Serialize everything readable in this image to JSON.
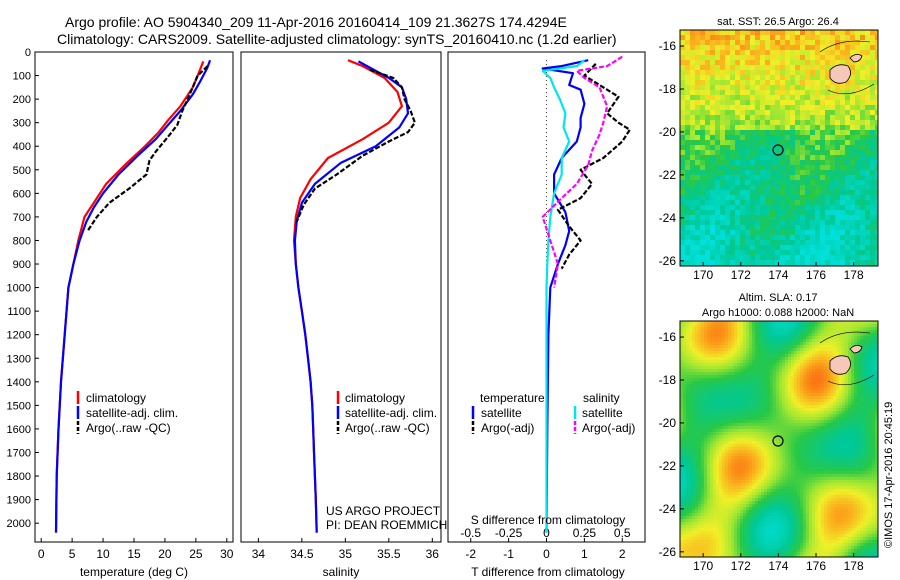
{
  "title": {
    "line1": "Argo profile: AO 5904340_209 11-Apr-2016 20160414_109 21.3627S 174.4294E",
    "line2": "Climatology: CARS2009. Satellite-adjusted climatology: synTS_20160410.nc (1.2d earlier)"
  },
  "colors": {
    "climatology": "#ff0000",
    "satellite": "#0000ff",
    "argo": "#000000",
    "sal_satellite": "#00e5ee",
    "sal_argo": "#ff00ff"
  },
  "depth_axis": {
    "ticks": [
      0,
      100,
      200,
      300,
      400,
      500,
      600,
      700,
      800,
      900,
      1000,
      1100,
      1200,
      1300,
      1400,
      1500,
      1600,
      1700,
      1800,
      1900,
      2000
    ],
    "ylim": [
      0,
      2080
    ]
  },
  "legend_tsal": [
    "climatology",
    "satellite-adj. clim.",
    "Argo(..raw -QC)"
  ],
  "legend_diff": {
    "temp_header": "temperature",
    "sal_header": "salinity",
    "satellite": "satellite",
    "argo": "Argo(-adj)"
  },
  "credit": {
    "project": "US ARGO PROJECT",
    "pi": "PI: DEAN ROEMMICH"
  },
  "chart_data": [
    {
      "type": "line",
      "xlabel": "temperature (deg C)",
      "xlim": [
        -1,
        31
      ],
      "xticks": [
        0,
        5,
        10,
        15,
        20,
        25,
        30
      ],
      "series": [
        {
          "name": "climatology",
          "points": [
            [
              26.2,
              40
            ],
            [
              25.6,
              80
            ],
            [
              24.5,
              150
            ],
            [
              22.5,
              230
            ],
            [
              20.5,
              290
            ],
            [
              19,
              340
            ],
            [
              16.8,
              400
            ],
            [
              13.5,
              480
            ],
            [
              10.5,
              560
            ],
            [
              8.5,
              640
            ],
            [
              7,
              700
            ],
            [
              6,
              800
            ],
            [
              5.2,
              900
            ],
            [
              4.4,
              1000
            ],
            [
              3.8,
              1200
            ],
            [
              3.2,
              1400
            ],
            [
              2.8,
              1600
            ],
            [
              2.5,
              1800
            ],
            [
              2.4,
              2040
            ]
          ]
        },
        {
          "name": "satellite-adj. clim.",
          "points": [
            [
              27.3,
              35
            ],
            [
              26.8,
              70
            ],
            [
              25.8,
              120
            ],
            [
              24.5,
              180
            ],
            [
              22.5,
              250
            ],
            [
              20.5,
              310
            ],
            [
              18.5,
              370
            ],
            [
              15.6,
              440
            ],
            [
              12.5,
              520
            ],
            [
              10,
              600
            ],
            [
              8.5,
              660
            ],
            [
              7.3,
              720
            ],
            [
              6.2,
              800
            ],
            [
              5.2,
              900
            ],
            [
              4.4,
              1000
            ],
            [
              3.8,
              1200
            ],
            [
              3.2,
              1400
            ],
            [
              2.8,
              1600
            ],
            [
              2.5,
              1800
            ],
            [
              2.4,
              2040
            ]
          ]
        },
        {
          "name": "Argo(..raw -QC)",
          "points": [
            [
              26.9,
              60
            ],
            [
              25.3,
              100
            ],
            [
              24,
              180
            ],
            [
              22.8,
              250
            ],
            [
              22,
              310
            ],
            [
              20.5,
              360
            ],
            [
              18.6,
              420
            ],
            [
              17.5,
              460
            ],
            [
              17,
              520
            ],
            [
              14.2,
              580
            ],
            [
              11,
              640
            ],
            [
              9,
              700
            ],
            [
              7.5,
              760
            ]
          ]
        }
      ]
    },
    {
      "type": "line",
      "xlabel": "salinity",
      "xlim": [
        33.8,
        36.1
      ],
      "xticks": [
        34,
        34.5,
        35,
        35.5,
        36
      ],
      "series": [
        {
          "name": "climatology",
          "points": [
            [
              35.03,
              35
            ],
            [
              35.2,
              60
            ],
            [
              35.45,
              110
            ],
            [
              35.6,
              170
            ],
            [
              35.65,
              230
            ],
            [
              35.5,
              300
            ],
            [
              35.2,
              370
            ],
            [
              34.8,
              450
            ],
            [
              34.6,
              540
            ],
            [
              34.48,
              620
            ],
            [
              34.43,
              700
            ],
            [
              34.41,
              800
            ],
            [
              34.43,
              900
            ],
            [
              34.46,
              1000
            ],
            [
              34.5,
              1100
            ],
            [
              34.54,
              1200
            ],
            [
              34.57,
              1300
            ],
            [
              34.6,
              1400
            ],
            [
              34.62,
              1500
            ],
            [
              34.63,
              1600
            ],
            [
              34.64,
              1700
            ],
            [
              34.65,
              1800
            ],
            [
              34.66,
              1900
            ],
            [
              34.67,
              2040
            ]
          ]
        },
        {
          "name": "satellite-adj. clim.",
          "points": [
            [
              35.15,
              40
            ],
            [
              35.3,
              70
            ],
            [
              35.5,
              110
            ],
            [
              35.65,
              150
            ],
            [
              35.7,
              200
            ],
            [
              35.72,
              260
            ],
            [
              35.62,
              320
            ],
            [
              35.35,
              400
            ],
            [
              34.95,
              470
            ],
            [
              34.65,
              560
            ],
            [
              34.5,
              640
            ],
            [
              34.44,
              720
            ],
            [
              34.42,
              800
            ],
            [
              34.43,
              900
            ],
            [
              34.46,
              1000
            ],
            [
              34.5,
              1100
            ],
            [
              34.54,
              1200
            ],
            [
              34.57,
              1300
            ],
            [
              34.6,
              1400
            ],
            [
              34.62,
              1500
            ],
            [
              34.63,
              1600
            ],
            [
              34.64,
              1700
            ],
            [
              34.65,
              1800
            ],
            [
              34.66,
              1900
            ],
            [
              34.67,
              2040
            ]
          ]
        },
        {
          "name": "Argo(..raw -QC)",
          "points": [
            [
              35.28,
              75
            ],
            [
              35.55,
              110
            ],
            [
              35.65,
              150
            ],
            [
              35.68,
              200
            ],
            [
              35.75,
              250
            ],
            [
              35.8,
              300
            ],
            [
              35.72,
              340
            ],
            [
              35.5,
              380
            ],
            [
              35.2,
              440
            ],
            [
              34.9,
              520
            ],
            [
              34.65,
              580
            ],
            [
              34.52,
              650
            ],
            [
              34.44,
              720
            ]
          ]
        }
      ]
    },
    {
      "type": "line",
      "xlabel": "T difference from climatology",
      "xlabel_top": "S difference from climatology",
      "xlim": [
        -2.6,
        2.6
      ],
      "xticks": [
        -2,
        -1,
        0,
        1,
        2
      ],
      "xticks_top_labels": [
        "-0.5",
        "-0.25",
        "0",
        "0.25",
        "0.5"
      ],
      "xticks_top_pos": [
        -2,
        -1,
        0,
        1,
        2
      ],
      "series": [
        {
          "name": "temperature satellite",
          "points": [
            [
              1.1,
              35
            ],
            [
              0.4,
              60
            ],
            [
              -0.1,
              70
            ],
            [
              0.7,
              90
            ],
            [
              0.6,
              140
            ],
            [
              0.9,
              160
            ],
            [
              1,
              220
            ],
            [
              0.9,
              280
            ],
            [
              0.9,
              320
            ],
            [
              0.8,
              380
            ],
            [
              0.4,
              450
            ],
            [
              0.2,
              520
            ],
            [
              0.2,
              600
            ],
            [
              0.5,
              680
            ],
            [
              0.6,
              760
            ],
            [
              0.5,
              820
            ],
            [
              0.3,
              900
            ],
            [
              0.1,
              1000
            ],
            [
              0.05,
              1200
            ],
            [
              0.02,
              1600
            ],
            [
              0,
              2040
            ]
          ]
        },
        {
          "name": "temperature Argo(-adj)",
          "points": [
            [
              1.3,
              50
            ],
            [
              1,
              100
            ],
            [
              1.9,
              190
            ],
            [
              1.6,
              260
            ],
            [
              1.9,
              300
            ],
            [
              2.2,
              330
            ],
            [
              2,
              380
            ],
            [
              1.5,
              450
            ],
            [
              0.9,
              500
            ],
            [
              1.2,
              560
            ],
            [
              0.9,
              620
            ],
            [
              0.3,
              670
            ],
            [
              0.6,
              740
            ],
            [
              0.9,
              800
            ],
            [
              0.6,
              860
            ],
            [
              0.4,
              920
            ]
          ]
        },
        {
          "name": "salinity satellite",
          "points": [
            [
              1,
              35
            ],
            [
              0.8,
              60
            ],
            [
              -0.1,
              80
            ],
            [
              0.1,
              110
            ],
            [
              0.2,
              150
            ],
            [
              0.35,
              200
            ],
            [
              0.5,
              260
            ],
            [
              0.45,
              320
            ],
            [
              0.6,
              380
            ],
            [
              0.4,
              450
            ],
            [
              0.4,
              520
            ],
            [
              0.2,
              600
            ],
            [
              0.1,
              700
            ],
            [
              0.05,
              800
            ],
            [
              0.02,
              900
            ],
            [
              0,
              1000
            ],
            [
              0,
              2040
            ]
          ]
        },
        {
          "name": "salinity Argo(-adj)",
          "points": [
            [
              2,
              20
            ],
            [
              1.6,
              60
            ],
            [
              0.8,
              80
            ],
            [
              1,
              110
            ],
            [
              1.4,
              150
            ],
            [
              1.6,
              230
            ],
            [
              1.5,
              300
            ],
            [
              1.4,
              350
            ],
            [
              1.2,
              420
            ],
            [
              1.1,
              480
            ],
            [
              0.8,
              560
            ],
            [
              0.4,
              620
            ],
            [
              -0.1,
              700
            ],
            [
              0.1,
              800
            ],
            [
              0.3,
              900
            ],
            [
              0.2,
              1000
            ]
          ]
        }
      ]
    },
    {
      "type": "heatmap",
      "title": "sat. SST: 26.5  Argo: 26.4",
      "xticks": [
        "170",
        "172",
        "174",
        "176",
        "178"
      ],
      "yticks": [
        "-16",
        "-18",
        "-20",
        "-22",
        "-24",
        "-26"
      ]
    },
    {
      "type": "heatmap",
      "title": "Altim. SLA: 0.17",
      "subtitle": "Argo h1000: 0.088 h2000: NaN",
      "xticks": [
        "170",
        "172",
        "174",
        "176",
        "178"
      ],
      "yticks": [
        "-16",
        "-18",
        "-20",
        "-22",
        "-24",
        "-26"
      ]
    }
  ],
  "stamp": "©IMOS 17-Apr-2016 20:45:19"
}
